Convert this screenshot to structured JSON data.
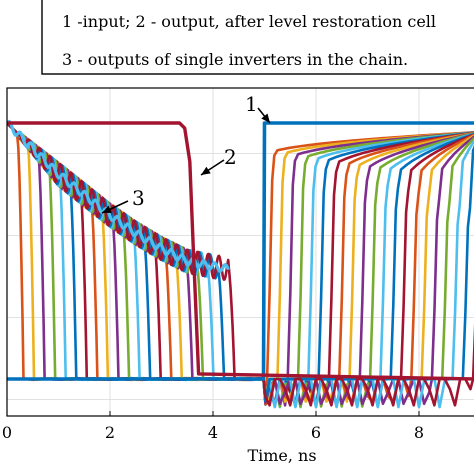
{
  "chart_data": {
    "type": "line",
    "title": "",
    "xlabel": "Time, ns",
    "ylabel": "",
    "xlim": [
      0,
      9.1
    ],
    "ylim": [
      -0.15,
      1.02
    ],
    "xticks": [
      0,
      2,
      4,
      6,
      8
    ],
    "grid": true,
    "legend": {
      "placement": "top",
      "lines": [
        "1 -input; 2 - output, after level restoration cell",
        "3 - outputs of single inverters in the chain."
      ]
    },
    "annotations": [
      {
        "label": "1",
        "points_to": [
          5.0,
          1.0
        ]
      },
      {
        "label": "2",
        "points_to": [
          3.8,
          0.78
        ]
      },
      {
        "label": "3",
        "points_to": [
          1.95,
          0.63
        ]
      }
    ],
    "series": [
      {
        "name": "1",
        "color": "#0072BD",
        "x": [
          0,
          4.98,
          5.0,
          9.1
        ],
        "y": [
          0,
          0,
          1.0,
          1.0
        ]
      },
      {
        "name": "2",
        "color": "#A2142F",
        "x": [
          0,
          3.35,
          3.45,
          3.55,
          3.62,
          3.72,
          9.1
        ],
        "y": [
          1.0,
          1.0,
          0.98,
          0.85,
          0.5,
          0.02,
          0.0
        ]
      },
      {
        "name": "3",
        "color": "#4DBEEE",
        "envelope_x": [
          0,
          0.5,
          1.0,
          1.5,
          2.0,
          2.5,
          3.0,
          3.5,
          4.0,
          4.3
        ],
        "envelope_y": [
          1.0,
          0.9,
          0.8,
          0.72,
          0.64,
          0.57,
          0.51,
          0.46,
          0.44,
          0.43
        ]
      }
    ],
    "inverter_chain": {
      "count": 21,
      "fall_start": 0.2,
      "fall_step": 0.205,
      "rise_start": 5.05,
      "rise_step": 0.2,
      "colors": [
        "#D95319",
        "#EDB120",
        "#7E2F8E",
        "#77AC30",
        "#4DBEEE",
        "#0072BD",
        "#A2142F"
      ]
    }
  }
}
